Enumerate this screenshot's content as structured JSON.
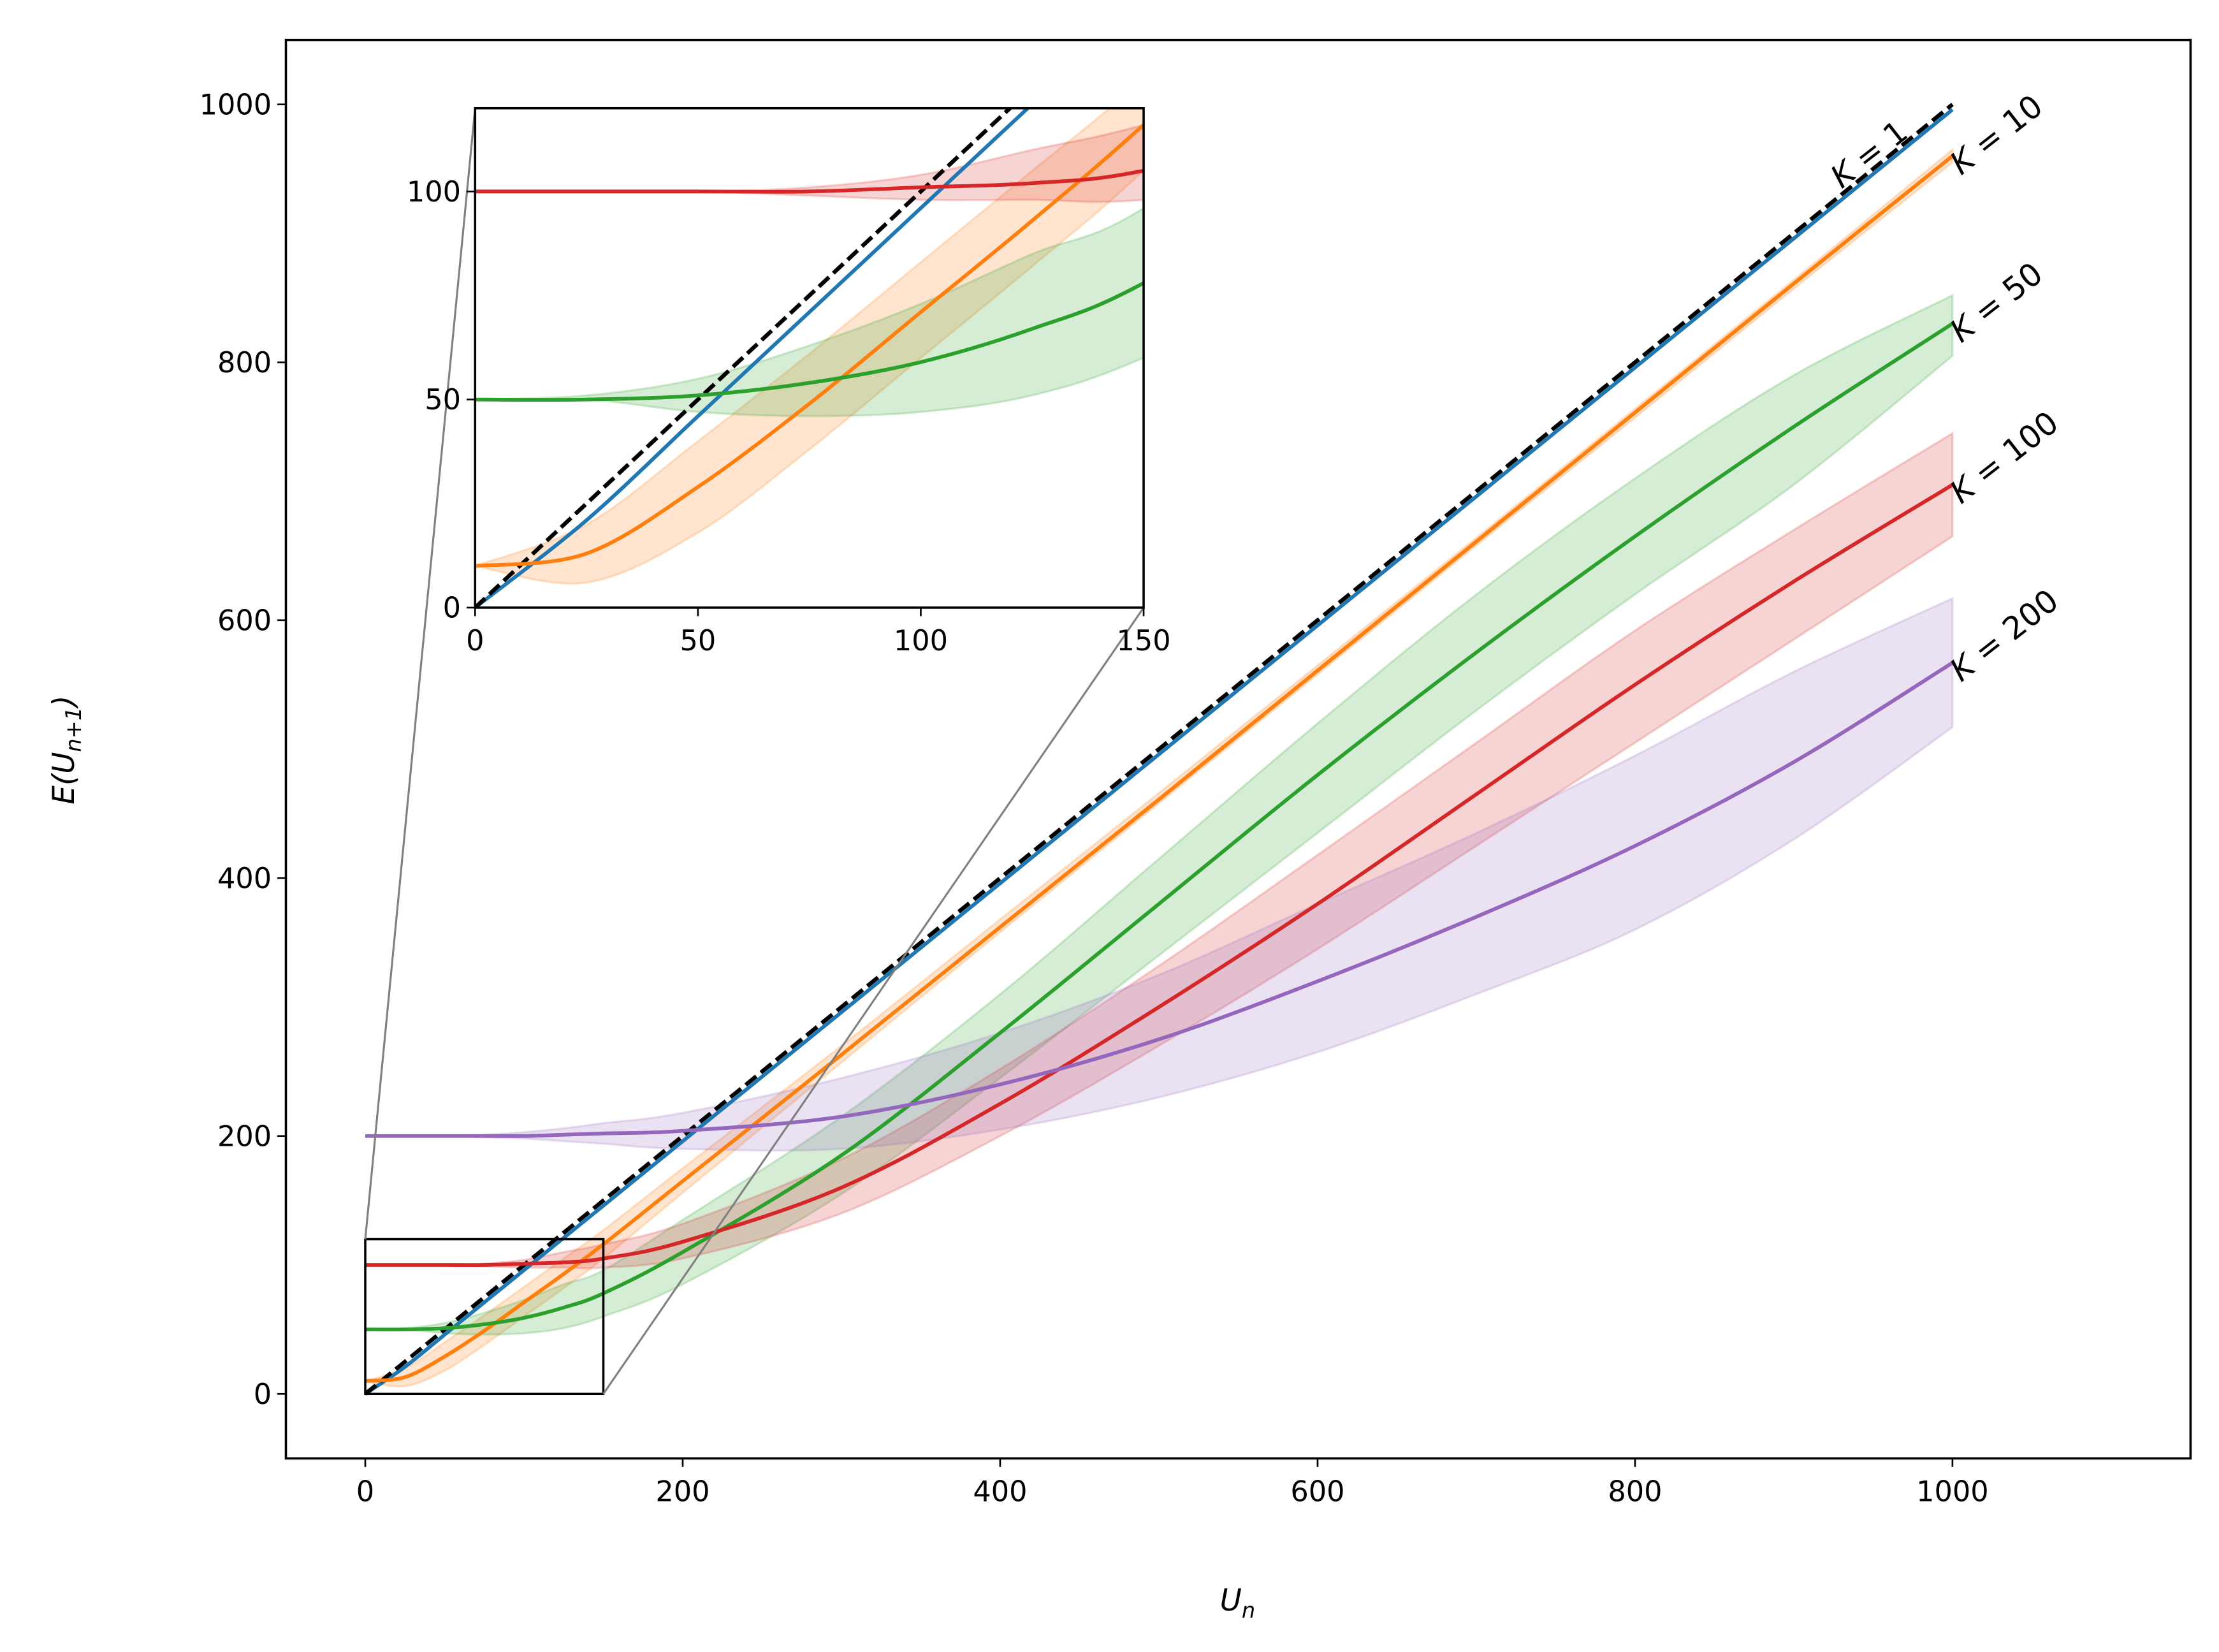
{
  "chart_data": {
    "type": "line",
    "xlabel": "U_n",
    "ylabel": "E(U_{n+1})",
    "xlim": [
      -50,
      1150
    ],
    "ylim": [
      -50,
      1050
    ],
    "xticks": [
      0,
      200,
      400,
      600,
      800,
      1000
    ],
    "yticks": [
      0,
      200,
      400,
      600,
      800,
      1000
    ],
    "grid": false,
    "x": [
      0,
      25,
      50,
      75,
      100,
      125,
      150,
      200,
      300,
      400,
      500,
      600,
      700,
      800,
      900,
      1000
    ],
    "reference_line": {
      "style": "dashed",
      "color": "#000000",
      "values": "y = x"
    },
    "series": [
      {
        "name": "K = 1",
        "color": "#1f77b4",
        "values": [
          0,
          21,
          46,
          71,
          96,
          121,
          146,
          196,
          296,
          396,
          496,
          596,
          696,
          796,
          896,
          996
        ]
      },
      {
        "name": "K = 10",
        "color": "#ff7f0e",
        "values": [
          10,
          13,
          29,
          49,
          71,
          93,
          116,
          165,
          263,
          362,
          461,
          561,
          661,
          761,
          861,
          960
        ],
        "lower": [
          10,
          6,
          18,
          38,
          60,
          82,
          105,
          156,
          257,
          358,
          458,
          558,
          658,
          757,
          857,
          955
        ],
        "upper": [
          10,
          20,
          40,
          61,
          83,
          105,
          127,
          175,
          270,
          368,
          466,
          565,
          664,
          764,
          864,
          965
        ]
      },
      {
        "name": "K = 50",
        "color": "#2ca02c",
        "values": [
          50,
          50,
          51,
          54,
          59,
          67,
          78,
          110,
          185,
          280,
          380,
          480,
          575,
          665,
          750,
          830
        ],
        "lower": [
          50,
          50,
          47,
          46,
          47,
          51,
          60,
          85,
          155,
          245,
          340,
          435,
          530,
          620,
          705,
          805
        ],
        "upper": [
          50,
          51,
          55,
          63,
          73,
          85,
          96,
          135,
          215,
          310,
          415,
          520,
          620,
          710,
          790,
          852
        ]
      },
      {
        "name": "K = 100",
        "color": "#d62728",
        "values": [
          100,
          100,
          100,
          100,
          101,
          102,
          105,
          118,
          160,
          225,
          300,
          380,
          465,
          550,
          630,
          705
        ],
        "lower": [
          100,
          100,
          100,
          99,
          98,
          98,
          98,
          105,
          140,
          200,
          270,
          345,
          425,
          505,
          585,
          665
        ],
        "upper": [
          100,
          100,
          100,
          101,
          104,
          110,
          116,
          132,
          182,
          252,
          332,
          418,
          505,
          592,
          670,
          745
        ]
      },
      {
        "name": "K = 200",
        "color": "#9467bd",
        "values": [
          200,
          200,
          200,
          200,
          200,
          201,
          202,
          204,
          215,
          240,
          275,
          320,
          370,
          425,
          490,
          567
        ],
        "lower": [
          200,
          200,
          200,
          199,
          198,
          196,
          194,
          190,
          190,
          205,
          230,
          265,
          310,
          360,
          430,
          517
        ],
        "upper": [
          200,
          200,
          200,
          201,
          203,
          206,
          210,
          218,
          245,
          280,
          325,
          380,
          435,
          495,
          560,
          617
        ]
      }
    ],
    "inset": {
      "xlim": [
        0,
        150
      ],
      "ylim": [
        0,
        120
      ],
      "xticks": [
        0,
        50,
        100,
        150
      ],
      "yticks": [
        0,
        50,
        100
      ]
    }
  }
}
